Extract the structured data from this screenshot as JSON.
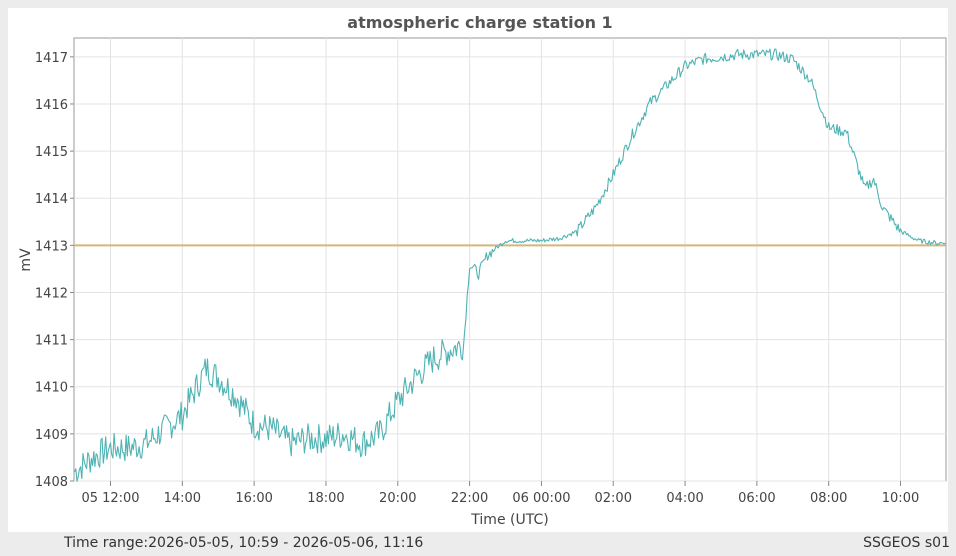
{
  "footer": {
    "time_range": "Time range:2026-05-05, 10:59 - 2026-05-06, 11:16",
    "station": "SSGEOS s01"
  },
  "chart_data": {
    "type": "line",
    "title": "atmospheric charge station 1",
    "xlabel": "Time (UTC)",
    "ylabel": "mV",
    "xlim": [
      "2026-05-05 10:59",
      "2026-05-06 11:16"
    ],
    "ylim": [
      1408,
      1417.4
    ],
    "grid": true,
    "x_tick_labels": [
      {
        "t": "2026-05-05 12:00",
        "label": "05 12:00"
      },
      {
        "t": "2026-05-05 14:00",
        "label": "14:00"
      },
      {
        "t": "2026-05-05 16:00",
        "label": "16:00"
      },
      {
        "t": "2026-05-05 18:00",
        "label": "18:00"
      },
      {
        "t": "2026-05-05 20:00",
        "label": "20:00"
      },
      {
        "t": "2026-05-05 22:00",
        "label": "22:00"
      },
      {
        "t": "2026-05-06 00:00",
        "label": "06 00:00"
      },
      {
        "t": "2026-05-06 02:00",
        "label": "02:00"
      },
      {
        "t": "2026-05-06 04:00",
        "label": "04:00"
      },
      {
        "t": "2026-05-06 06:00",
        "label": "06:00"
      },
      {
        "t": "2026-05-06 08:00",
        "label": "08:00"
      },
      {
        "t": "2026-05-06 10:00",
        "label": "10:00"
      }
    ],
    "y_ticks": [
      1408,
      1409,
      1410,
      1411,
      1412,
      1413,
      1414,
      1415,
      1416,
      1417
    ],
    "reference_line": {
      "y": 1413,
      "color": "#d8b47a"
    },
    "series": [
      {
        "color": "#4fb3b3",
        "points": [
          [
            "2026-05-05 11:00",
            1408.2
          ],
          [
            "2026-05-05 11:30",
            1408.5
          ],
          [
            "2026-05-05 12:00",
            1408.7
          ],
          [
            "2026-05-05 12:30",
            1408.7
          ],
          [
            "2026-05-05 13:00",
            1408.8
          ],
          [
            "2026-05-05 13:30",
            1409.1
          ],
          [
            "2026-05-05 14:00",
            1409.4
          ],
          [
            "2026-05-05 14:20",
            1409.9
          ],
          [
            "2026-05-05 14:40",
            1410.4
          ],
          [
            "2026-05-05 15:00",
            1410.2
          ],
          [
            "2026-05-05 15:30",
            1409.8
          ],
          [
            "2026-05-05 16:00",
            1409.2
          ],
          [
            "2026-05-05 16:30",
            1409.1
          ],
          [
            "2026-05-05 17:00",
            1408.8
          ],
          [
            "2026-05-05 17:30",
            1408.9
          ],
          [
            "2026-05-05 18:00",
            1408.9
          ],
          [
            "2026-05-05 18:30",
            1409.0
          ],
          [
            "2026-05-05 19:00",
            1408.8
          ],
          [
            "2026-05-05 19:30",
            1409.0
          ],
          [
            "2026-05-05 20:00",
            1409.7
          ],
          [
            "2026-05-05 20:30",
            1410.2
          ],
          [
            "2026-05-05 21:00",
            1410.6
          ],
          [
            "2026-05-05 21:30",
            1410.8
          ],
          [
            "2026-05-05 21:50",
            1410.9
          ],
          [
            "2026-05-05 22:00",
            1412.6
          ],
          [
            "2026-05-05 22:15",
            1412.4
          ],
          [
            "2026-05-05 22:30",
            1412.8
          ],
          [
            "2026-05-05 23:00",
            1413.1
          ],
          [
            "2026-05-05 23:30",
            1413.1
          ],
          [
            "2026-05-06 00:00",
            1413.1
          ],
          [
            "2026-05-06 00:30",
            1413.15
          ],
          [
            "2026-05-06 01:00",
            1413.3
          ],
          [
            "2026-05-06 01:30",
            1413.8
          ],
          [
            "2026-05-06 02:00",
            1414.5
          ],
          [
            "2026-05-06 02:30",
            1415.3
          ],
          [
            "2026-05-06 03:00",
            1416.0
          ],
          [
            "2026-05-06 03:30",
            1416.4
          ],
          [
            "2026-05-06 04:00",
            1416.8
          ],
          [
            "2026-05-06 04:30",
            1416.95
          ],
          [
            "2026-05-06 05:00",
            1417.0
          ],
          [
            "2026-05-06 05:30",
            1417.05
          ],
          [
            "2026-05-06 06:00",
            1417.05
          ],
          [
            "2026-05-06 06:30",
            1417.05
          ],
          [
            "2026-05-06 07:00",
            1416.95
          ],
          [
            "2026-05-06 07:30",
            1416.5
          ],
          [
            "2026-05-06 08:00",
            1415.5
          ],
          [
            "2026-05-06 08:30",
            1415.4
          ],
          [
            "2026-05-06 09:00",
            1414.2
          ],
          [
            "2026-05-06 09:15",
            1414.4
          ],
          [
            "2026-05-06 09:30",
            1413.8
          ],
          [
            "2026-05-06 10:00",
            1413.3
          ],
          [
            "2026-05-06 10:30",
            1413.1
          ],
          [
            "2026-05-06 11:00",
            1413.05
          ],
          [
            "2026-05-06 11:15",
            1413.05
          ]
        ]
      }
    ]
  }
}
